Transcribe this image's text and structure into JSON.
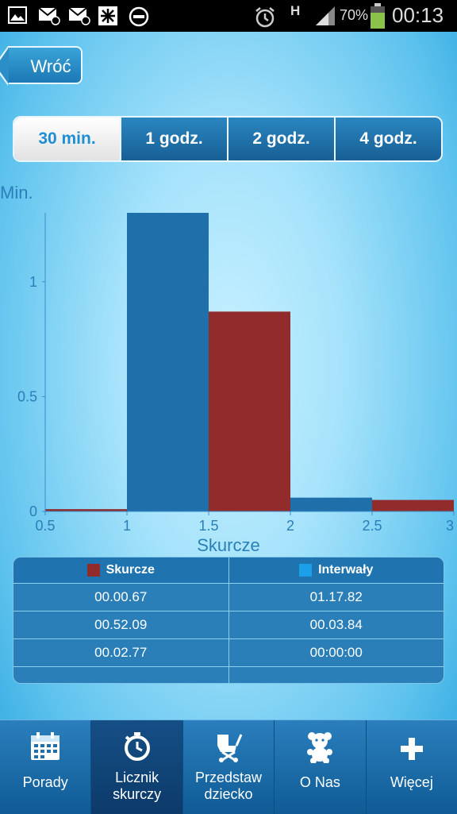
{
  "status_bar": {
    "battery": "70%",
    "time": "00:13",
    "network": "H"
  },
  "back_label": "Wróć",
  "tabs": [
    {
      "label": "30 min.",
      "active": true
    },
    {
      "label": "1 godz.",
      "active": false
    },
    {
      "label": "2 godz.",
      "active": false
    },
    {
      "label": "4 godz.",
      "active": false
    }
  ],
  "chart_data": {
    "type": "bar",
    "ylabel": "Min.",
    "xlabel": "Skurcze",
    "xlim": [
      0.5,
      3
    ],
    "ylim": [
      0,
      1.3
    ],
    "x_ticks": [
      "0.5",
      "1",
      "1.5",
      "2",
      "2.5",
      "3"
    ],
    "y_ticks": [
      "0",
      "0.5",
      "1"
    ],
    "bars": [
      {
        "x_start": 0.5,
        "x_end": 1.0,
        "value": 0.01,
        "series": "Skurcze"
      },
      {
        "x_start": 1.0,
        "x_end": 1.5,
        "value": 1.3,
        "series": "Interwały"
      },
      {
        "x_start": 1.5,
        "x_end": 2.0,
        "value": 0.87,
        "series": "Skurcze"
      },
      {
        "x_start": 2.0,
        "x_end": 2.5,
        "value": 0.06,
        "series": "Interwały"
      },
      {
        "x_start": 2.5,
        "x_end": 3.0,
        "value": 0.05,
        "series": "Skurcze"
      }
    ],
    "series": [
      {
        "name": "Skurcze",
        "color": "#922b2b"
      },
      {
        "name": "Interwały",
        "color": "#1f6faa"
      }
    ]
  },
  "table": {
    "headers": [
      "Skurcze",
      "Interwały"
    ],
    "header_colors": [
      "#922b2b",
      "#1aa0e8"
    ],
    "rows": [
      [
        "00.00.67",
        "01.17.82"
      ],
      [
        "00.52.09",
        "00.03.84"
      ],
      [
        "00.02.77",
        "00:00:00"
      ]
    ]
  },
  "nav": [
    {
      "label": "Porady",
      "icon": "calendar-icon",
      "active": false
    },
    {
      "label": "Licznik\nskurczy",
      "icon": "stopwatch-icon",
      "active": true
    },
    {
      "label": "Przedstaw\ndziecko",
      "icon": "stroller-icon",
      "active": false
    },
    {
      "label": "O Nas",
      "icon": "teddy-bear-icon",
      "active": false
    },
    {
      "label": "Więcej",
      "icon": "plus-icon",
      "active": false
    }
  ]
}
